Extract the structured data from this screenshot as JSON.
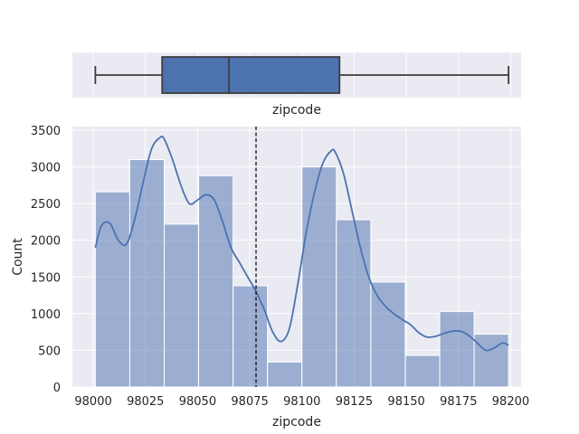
{
  "chart_data": [
    {
      "type": "box",
      "xlabel": "zipcode",
      "xlim": [
        97990,
        98205
      ],
      "stats": {
        "whisker_low": 98001,
        "q1": 98033,
        "median": 98065,
        "q3": 98118,
        "whisker_high": 98199
      },
      "grid": true
    },
    {
      "type": "bar",
      "subtype": "histogram_with_kde",
      "xlabel": "zipcode",
      "ylabel": "Count",
      "xlim": [
        97990,
        98205
      ],
      "ylim": [
        0,
        3550
      ],
      "xticks": [
        98000,
        98025,
        98050,
        98075,
        98100,
        98125,
        98150,
        98175,
        98200
      ],
      "yticks": [
        0,
        500,
        1000,
        1500,
        2000,
        2500,
        3000,
        3500
      ],
      "bin_edges": [
        98001,
        98025.8,
        98050.6,
        98075.4,
        98100.2,
        98125,
        98149.8,
        98174.6,
        98199.4
      ],
      "bins": [
        {
          "x0": 98001,
          "x1": 98025.8,
          "count": 2660
        },
        {
          "x0": 98025.8,
          "x1": 98050.6,
          "count": 3100
        },
        {
          "x0": 98050.6,
          "x1": 98075.4,
          "count": 2220
        },
        {
          "x0": 98075.4,
          "x1": 98100.2,
          "count": 2880
        },
        {
          "x0": 98100.2,
          "x1": 98125,
          "count": 1380
        },
        {
          "x0": 98125,
          "x1": 98149.8,
          "count": 340
        },
        {
          "x0": 98149.8,
          "x1": 98174.6,
          "count": 3000
        },
        {
          "x0": 98174.6,
          "x1": 98199.4,
          "count": 2280
        }
      ],
      "bins_extra": [
        {
          "count": 1430
        },
        {
          "count": 430
        },
        {
          "count": 1030
        },
        {
          "count": 720
        }
      ],
      "kde_x": [
        98001,
        98004,
        98008,
        98012,
        98016,
        98020,
        98024,
        98028,
        98032,
        98034,
        98038,
        98042,
        98046,
        98050,
        98054,
        98058,
        98062,
        98066,
        98070,
        98074,
        98078,
        98082,
        98086,
        98090,
        98094,
        98098,
        98102,
        98106,
        98110,
        98114,
        98116,
        98120,
        98124,
        98128,
        98132,
        98136,
        98140,
        98144,
        98148,
        98152,
        98156,
        98160,
        98164,
        98168,
        98172,
        98176,
        98180,
        98184,
        98188,
        98192,
        98196,
        98199
      ],
      "kde_y": [
        1900,
        2200,
        2230,
        2000,
        1950,
        2300,
        2800,
        3250,
        3400,
        3380,
        3100,
        2750,
        2500,
        2550,
        2620,
        2550,
        2250,
        1900,
        1700,
        1500,
        1300,
        1050,
        750,
        620,
        800,
        1400,
        2100,
        2650,
        3050,
        3220,
        3200,
        2900,
        2400,
        1900,
        1500,
        1250,
        1100,
        1000,
        920,
        850,
        740,
        680,
        690,
        730,
        760,
        760,
        700,
        600,
        500,
        530,
        600,
        570
      ],
      "vline_x": 98078,
      "colors": {
        "bar": "#4c72b0",
        "kde": "#4c72b0",
        "background": "#eaeaf2",
        "grid": "#ffffff",
        "vline": "#000000"
      }
    }
  ]
}
